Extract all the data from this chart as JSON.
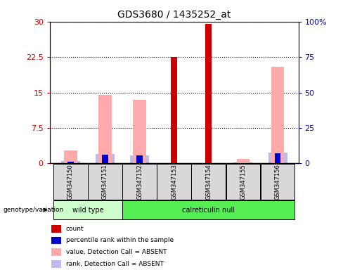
{
  "title": "GDS3680 / 1435252_at",
  "samples": [
    "GSM347150",
    "GSM347151",
    "GSM347152",
    "GSM347153",
    "GSM347154",
    "GSM347155",
    "GSM347156"
  ],
  "group_labels": [
    "wild type",
    "calreticulin null"
  ],
  "count_values": [
    0,
    0,
    0,
    22.5,
    29.5,
    0,
    0
  ],
  "percentile_rank_values": [
    1.0,
    6.0,
    5.5,
    7.0,
    7.5,
    0,
    7.0
  ],
  "value_absent": [
    2.8,
    14.5,
    13.5,
    0,
    0,
    1.0,
    20.5
  ],
  "rank_absent": [
    1.5,
    6.5,
    5.5,
    0,
    0,
    0.5,
    7.5
  ],
  "ylim_left": [
    0,
    30
  ],
  "ylim_right": [
    0,
    100
  ],
  "yticks_left": [
    0,
    7.5,
    15,
    22.5,
    30
  ],
  "yticks_left_labels": [
    "0",
    "7.5",
    "15",
    "22.5",
    "30"
  ],
  "yticks_right": [
    0,
    25,
    50,
    75,
    100
  ],
  "yticks_right_labels": [
    "0",
    "25",
    "50",
    "75",
    "100%"
  ],
  "color_count": "#cc0000",
  "color_percentile": "#0000cc",
  "color_value_absent": "#ffaaaa",
  "color_rank_absent": "#bbbbee",
  "color_group_wt": "#ccffcc",
  "color_group_null": "#55ee55",
  "legend_items": [
    {
      "label": "count",
      "color": "#cc0000"
    },
    {
      "label": "percentile rank within the sample",
      "color": "#0000cc"
    },
    {
      "label": "value, Detection Call = ABSENT",
      "color": "#ffaaaa"
    },
    {
      "label": "rank, Detection Call = ABSENT",
      "color": "#bbbbee"
    }
  ]
}
